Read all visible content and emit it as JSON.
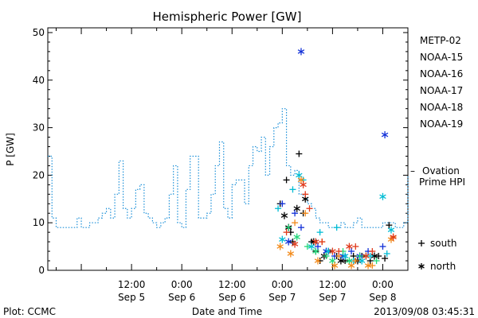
{
  "chart_data": {
    "type": "scatter",
    "title": "Hemispheric Power [GW]",
    "ylabel": "P [GW]",
    "xlabel": "Date and Time",
    "ylim": [
      0,
      51
    ],
    "xlim": [
      "2013-09-04T16:00",
      "2013-09-08T06:00"
    ],
    "yticks": [
      0,
      10,
      20,
      30,
      40,
      50
    ],
    "xticks": [
      {
        "t": "2013-09-05T12:00",
        "time": "12:00",
        "date": "Sep 5"
      },
      {
        "t": "2013-09-06T00:00",
        "time": "0:00",
        "date": "Sep 6"
      },
      {
        "t": "2013-09-06T12:00",
        "time": "12:00",
        "date": "Sep 6"
      },
      {
        "t": "2013-09-07T00:00",
        "time": "0:00",
        "date": "Sep 7"
      },
      {
        "t": "2013-09-07T12:00",
        "time": "12:00",
        "date": "Sep 7"
      },
      {
        "t": "2013-09-08T00:00",
        "time": "0:00",
        "date": "Sep 8"
      }
    ],
    "grid": false,
    "legend_placement": "right",
    "ovation": {
      "name": "Ovation Prime HPI",
      "label_lines": [
        "Ovation",
        "Prime HPI"
      ],
      "color": "#1a8fd8",
      "x": [
        "2013-09-04T16:00",
        "2013-09-04T17:00",
        "2013-09-04T18:00",
        "2013-09-04T19:00",
        "2013-09-04T20:00",
        "2013-09-04T21:00",
        "2013-09-04T22:00",
        "2013-09-04T23:00",
        "2013-09-05T00:00",
        "2013-09-05T01:00",
        "2013-09-05T02:00",
        "2013-09-05T03:00",
        "2013-09-05T04:00",
        "2013-09-05T05:00",
        "2013-09-05T06:00",
        "2013-09-05T07:00",
        "2013-09-05T08:00",
        "2013-09-05T09:00",
        "2013-09-05T10:00",
        "2013-09-05T11:00",
        "2013-09-05T12:00",
        "2013-09-05T13:00",
        "2013-09-05T14:00",
        "2013-09-05T15:00",
        "2013-09-05T16:00",
        "2013-09-05T17:00",
        "2013-09-05T18:00",
        "2013-09-05T19:00",
        "2013-09-05T20:00",
        "2013-09-05T21:00",
        "2013-09-05T22:00",
        "2013-09-05T23:00",
        "2013-09-06T00:00",
        "2013-09-06T01:00",
        "2013-09-06T02:00",
        "2013-09-06T03:00",
        "2013-09-06T04:00",
        "2013-09-06T05:00",
        "2013-09-06T06:00",
        "2013-09-06T07:00",
        "2013-09-06T08:00",
        "2013-09-06T09:00",
        "2013-09-06T10:00",
        "2013-09-06T11:00",
        "2013-09-06T12:00",
        "2013-09-06T13:00",
        "2013-09-06T14:00",
        "2013-09-06T15:00",
        "2013-09-06T16:00",
        "2013-09-06T17:00",
        "2013-09-06T18:00",
        "2013-09-06T19:00",
        "2013-09-06T20:00",
        "2013-09-06T21:00",
        "2013-09-06T22:00",
        "2013-09-06T23:00",
        "2013-09-07T00:00",
        "2013-09-07T01:00",
        "2013-09-07T02:00",
        "2013-09-07T03:00",
        "2013-09-07T04:00",
        "2013-09-07T05:00",
        "2013-09-07T06:00",
        "2013-09-07T07:00",
        "2013-09-07T08:00",
        "2013-09-07T09:00",
        "2013-09-07T10:00",
        "2013-09-07T11:00",
        "2013-09-07T12:00",
        "2013-09-07T13:00",
        "2013-09-07T14:00",
        "2013-09-07T15:00",
        "2013-09-07T16:00",
        "2013-09-07T17:00",
        "2013-09-07T18:00",
        "2013-09-07T19:00",
        "2013-09-07T20:00",
        "2013-09-07T21:00",
        "2013-09-07T22:00",
        "2013-09-07T23:00",
        "2013-09-08T00:00",
        "2013-09-08T01:00",
        "2013-09-08T02:00",
        "2013-09-08T03:00",
        "2013-09-08T04:00",
        "2013-09-08T05:00",
        "2013-09-08T06:00"
      ],
      "values": [
        24,
        11,
        9,
        9,
        9,
        9,
        9,
        11,
        9,
        9,
        10,
        10,
        11,
        12,
        13,
        11,
        16,
        23,
        13,
        11,
        13,
        17,
        18,
        12,
        11,
        10,
        9,
        10,
        11,
        16,
        22,
        10,
        9,
        17,
        24,
        24,
        11,
        11,
        12,
        16,
        22,
        27,
        13,
        11,
        18,
        19,
        19,
        14,
        22,
        26,
        25,
        28,
        20,
        26,
        30,
        31,
        34,
        22,
        20,
        21,
        16,
        15,
        14,
        13,
        11,
        10,
        10,
        9,
        9,
        9,
        10,
        9,
        9,
        10,
        11,
        9,
        9,
        9,
        9,
        9,
        10,
        10,
        10,
        9,
        9,
        10,
        20
      ]
    },
    "series": [
      {
        "name": "METP-02",
        "color": "#000000",
        "south": [
          [
            "2013-09-06T23:30",
            14
          ],
          [
            "2013-09-07T01:00",
            19
          ],
          [
            "2013-09-07T02:00",
            8
          ],
          [
            "2013-09-07T02:30",
            6
          ],
          [
            "2013-09-07T04:00",
            24.5
          ],
          [
            "2013-09-07T05:00",
            12
          ],
          [
            "2013-09-07T07:00",
            6
          ],
          [
            "2013-09-07T08:00",
            4
          ],
          [
            "2013-09-07T09:00",
            2
          ],
          [
            "2013-09-07T11:00",
            4
          ],
          [
            "2013-09-07T13:00",
            3
          ],
          [
            "2013-09-07T15:00",
            2
          ],
          [
            "2013-09-07T17:00",
            3
          ],
          [
            "2013-09-07T19:00",
            3
          ],
          [
            "2013-09-07T21:00",
            2
          ],
          [
            "2013-09-07T23:00",
            3
          ],
          [
            "2013-09-08T00:30",
            2.5
          ],
          [
            "2013-09-08T01:30",
            9.5
          ]
        ],
        "north": [
          [
            "2013-09-07T00:30",
            11.5
          ],
          [
            "2013-09-07T01:30",
            9
          ],
          [
            "2013-09-07T03:30",
            13
          ],
          [
            "2013-09-07T05:30",
            15
          ],
          [
            "2013-09-07T07:30",
            6
          ],
          [
            "2013-09-07T10:00",
            3
          ],
          [
            "2013-09-07T14:00",
            2
          ],
          [
            "2013-09-07T18:00",
            2
          ],
          [
            "2013-09-07T22:00",
            3
          ]
        ]
      },
      {
        "name": "NOAA-15",
        "color": "#1230d8",
        "south": [
          [
            "2013-09-07T00:00",
            14
          ],
          [
            "2013-09-07T03:00",
            12
          ],
          [
            "2013-09-07T04:30",
            9
          ],
          [
            "2013-09-07T08:30",
            5
          ],
          [
            "2013-09-07T12:30",
            3
          ],
          [
            "2013-09-07T16:30",
            4
          ],
          [
            "2013-09-07T20:30",
            4
          ],
          [
            "2013-09-08T00:00",
            5
          ]
        ],
        "north": [
          [
            "2013-09-07T01:30",
            6
          ],
          [
            "2013-09-07T04:30",
            46
          ],
          [
            "2013-09-07T10:30",
            4
          ],
          [
            "2013-09-07T14:30",
            3
          ],
          [
            "2013-09-07T18:30",
            3
          ],
          [
            "2013-09-08T00:30",
            28.5
          ]
        ]
      },
      {
        "name": "NOAA-16",
        "color": "#00bcd4",
        "south": [
          [
            "2013-09-06T23:00",
            13
          ],
          [
            "2013-09-07T02:30",
            17
          ],
          [
            "2013-09-07T05:00",
            19
          ],
          [
            "2013-09-07T09:00",
            8
          ],
          [
            "2013-09-07T13:00",
            9
          ],
          [
            "2013-09-07T17:00",
            2
          ],
          [
            "2013-09-07T21:00",
            3
          ],
          [
            "2013-09-08T01:00",
            3.5
          ]
        ],
        "north": [
          [
            "2013-09-07T00:00",
            6.5
          ],
          [
            "2013-09-07T04:00",
            20
          ],
          [
            "2013-09-07T07:00",
            5
          ],
          [
            "2013-09-07T11:00",
            4
          ],
          [
            "2013-09-07T15:00",
            3
          ],
          [
            "2013-09-07T19:00",
            2
          ],
          [
            "2013-09-08T00:00",
            15.5
          ],
          [
            "2013-09-08T02:00",
            8.5
          ]
        ]
      },
      {
        "name": "NOAA-17",
        "color": "#22d87a",
        "south": [
          [
            "2013-09-07T01:30",
            9
          ],
          [
            "2013-09-07T06:00",
            5
          ],
          [
            "2013-09-07T10:30",
            3
          ],
          [
            "2013-09-07T14:30",
            4
          ],
          [
            "2013-09-07T18:30",
            3
          ],
          [
            "2013-09-07T22:30",
            2
          ]
        ],
        "north": [
          [
            "2013-09-07T03:30",
            7
          ],
          [
            "2013-09-07T08:00",
            4
          ],
          [
            "2013-09-07T12:00",
            2
          ],
          [
            "2013-09-07T16:00",
            2
          ],
          [
            "2013-09-07T20:00",
            3
          ]
        ]
      },
      {
        "name": "NOAA-18",
        "color": "#f28a1a",
        "south": [
          [
            "2013-09-07T03:00",
            10
          ],
          [
            "2013-09-07T05:30",
            12
          ],
          [
            "2013-09-07T09:30",
            6
          ],
          [
            "2013-09-07T13:30",
            3
          ],
          [
            "2013-09-07T17:30",
            2
          ],
          [
            "2013-09-07T21:30",
            1
          ],
          [
            "2013-09-08T02:30",
            7
          ]
        ],
        "north": [
          [
            "2013-09-06T23:30",
            5
          ],
          [
            "2013-09-07T02:00",
            3.5
          ],
          [
            "2013-09-07T04:30",
            19
          ],
          [
            "2013-09-07T08:30",
            2
          ],
          [
            "2013-09-07T12:30",
            1
          ],
          [
            "2013-09-07T16:30",
            1
          ],
          [
            "2013-09-07T20:30",
            1
          ],
          [
            "2013-09-08T02:00",
            6.5
          ]
        ]
      },
      {
        "name": "NOAA-19",
        "color": "#e03a1c",
        "south": [
          [
            "2013-09-07T01:00",
            8
          ],
          [
            "2013-09-07T05:30",
            16
          ],
          [
            "2013-09-07T06:30",
            13
          ],
          [
            "2013-09-07T09:30",
            6
          ],
          [
            "2013-09-07T13:30",
            4
          ],
          [
            "2013-09-07T17:30",
            5
          ],
          [
            "2013-09-07T21:30",
            4
          ]
        ],
        "north": [
          [
            "2013-09-07T03:00",
            5.5
          ],
          [
            "2013-09-07T05:00",
            18
          ],
          [
            "2013-09-07T08:00",
            6
          ],
          [
            "2013-09-07T12:00",
            4
          ],
          [
            "2013-09-07T16:00",
            5
          ],
          [
            "2013-09-07T20:00",
            3
          ],
          [
            "2013-09-08T02:30",
            7
          ]
        ]
      }
    ],
    "marker_legend": [
      {
        "symbol": "+",
        "label": "south"
      },
      {
        "symbol": "*",
        "label": "north"
      }
    ]
  },
  "footer": {
    "plot_credit": "Plot: CCMC",
    "timestamp": "2013/09/08 03:45:31"
  }
}
